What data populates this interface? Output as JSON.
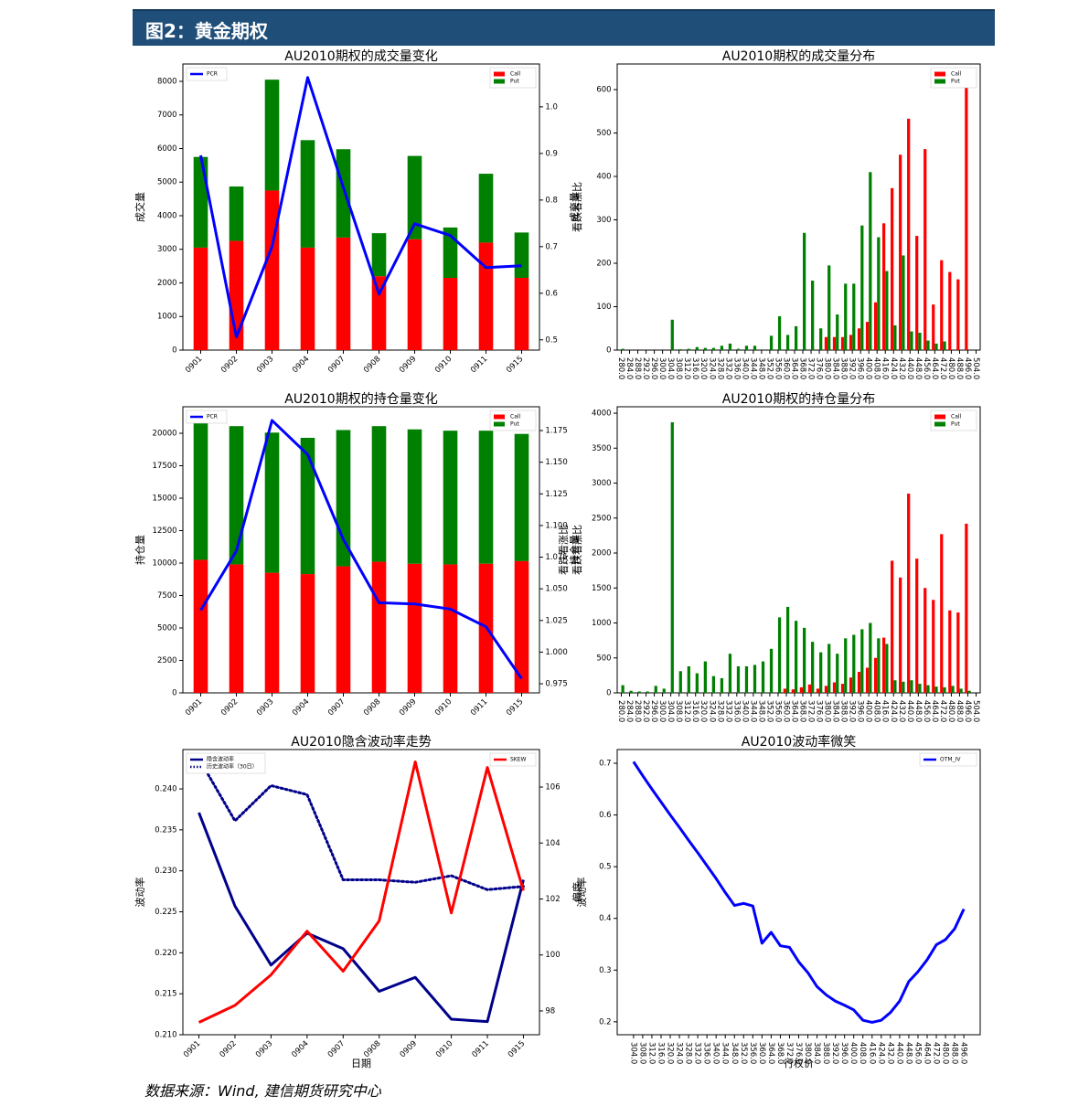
{
  "header": {
    "title": "图2：黄金期权"
  },
  "footer": {
    "text": "数据来源：Wind, 建信期货研究中心"
  },
  "chart_data": [
    {
      "type": "stacked_bar_line",
      "title": "AU2010期权的成交量变化",
      "ylabel": "成交量",
      "y2label": "看跌看涨比",
      "categories": [
        "0901",
        "0902",
        "0903",
        "0904",
        "0907",
        "0908",
        "0909",
        "0910",
        "0911",
        "0915"
      ],
      "xtick_rotation": 45,
      "series": [
        {
          "name": "Call",
          "color": "#ff0000",
          "values": [
            3050,
            3250,
            4750,
            3050,
            3350,
            2200,
            3300,
            2150,
            3200,
            2150
          ]
        },
        {
          "name": "Put",
          "color": "#008000",
          "values": [
            2700,
            1620,
            3300,
            3200,
            2630,
            1280,
            2480,
            1500,
            2050,
            1350
          ]
        },
        {
          "name": "PCR",
          "color": "#0000ff",
          "axis": "y2",
          "values": [
            0.896,
            0.506,
            0.7,
            1.063,
            0.827,
            0.598,
            0.749,
            0.724,
            0.655,
            0.659
          ]
        }
      ],
      "ylim": [
        0,
        8517
      ],
      "yticks": [
        0,
        1000,
        2000,
        3000,
        4000,
        5000,
        6000,
        7000,
        8000
      ],
      "y2lim": [
        0.478,
        1.092
      ],
      "y2ticks": [
        0.5,
        0.6,
        0.7,
        0.8,
        0.9,
        {
          "value": 1,
          "label": "1.0"
        }
      ],
      "legend": "upper right",
      "legend2": "upper left"
    },
    {
      "type": "grouped_bar",
      "title": "AU2010期权的成交量分布",
      "ylabel": "成交量",
      "categories": [
        "280.0",
        "284.0",
        "288.0",
        "292.0",
        "296.0",
        "300.0",
        "304.0",
        "308.0",
        "312.0",
        "316.0",
        "320.0",
        "324.0",
        "328.0",
        "332.0",
        "336.0",
        "340.0",
        "344.0",
        "348.0",
        "352.0",
        "356.0",
        "360.0",
        "364.0",
        "368.0",
        "372.0",
        "376.0",
        "380.0",
        "384.0",
        "388.0",
        "392.0",
        "396.0",
        "400.0",
        "408.0",
        "416.0",
        "424.0",
        "432.0",
        "440.0",
        "448.0",
        "456.0",
        "464.0",
        "472.0",
        "480.0",
        "488.0",
        "496.0",
        "504.0"
      ],
      "xtick_rotation": 90,
      "series": [
        {
          "name": "Call",
          "color": "#ff0000",
          "values": [
            0,
            0,
            0,
            0,
            0,
            0,
            0,
            0,
            0,
            0,
            0,
            0,
            0,
            0,
            0,
            0,
            0,
            0,
            0,
            0,
            0,
            0,
            0,
            0,
            0,
            30,
            30,
            30,
            35,
            50,
            65,
            110,
            292,
            373,
            450,
            533,
            263,
            463,
            105,
            207,
            180,
            163,
            615,
            0
          ]
        },
        {
          "name": "Put",
          "color": "#008000",
          "values": [
            3,
            0,
            0,
            0,
            0,
            0,
            70,
            2,
            3,
            7,
            5,
            5,
            10,
            15,
            3,
            10,
            10,
            0,
            33,
            78,
            35,
            55,
            270,
            160,
            50,
            195,
            82,
            153,
            153,
            287,
            410,
            260,
            182,
            57,
            218,
            43,
            40,
            22,
            15,
            20,
            0,
            0,
            0,
            0
          ]
        }
      ],
      "ylim": [
        0,
        659
      ],
      "yticks": [
        0,
        100,
        200,
        300,
        400,
        500,
        600
      ],
      "legend": "upper right"
    },
    {
      "type": "stacked_bar_line",
      "title": "AU2010期权的持仓量变化",
      "ylabel": "持仓量",
      "y2label": "看跌看涨比",
      "categories": [
        "0901",
        "0902",
        "0903",
        "0904",
        "0907",
        "0908",
        "0909",
        "0910",
        "0911",
        "0915"
      ],
      "xtick_rotation": 45,
      "series": [
        {
          "name": "Call",
          "color": "#ff0000",
          "values": [
            10250,
            9900,
            9250,
            9150,
            9750,
            10100,
            9950,
            9900,
            9950,
            10150
          ]
        },
        {
          "name": "Put",
          "color": "#008000",
          "values": [
            10600,
            10650,
            10800,
            10500,
            10500,
            10450,
            10350,
            10300,
            10250,
            9800
          ]
        },
        {
          "name": "PCR",
          "color": "#0000ff",
          "axis": "y2",
          "values": [
            1.033,
            1.08,
            1.183,
            1.156,
            1.089,
            1.039,
            1.038,
            1.034,
            1.02,
            0.979
          ]
        }
      ],
      "ylim": [
        0,
        22042
      ],
      "yticks": [
        0,
        2500,
        5000,
        7500,
        10000,
        12500,
        15000,
        17500,
        20000
      ],
      "y2lim": [
        0.9678,
        1.1938
      ],
      "y2ticks": [
        0.975,
        {
          "value": 1,
          "label": "1.000"
        },
        1.025,
        {
          "value": 1.05,
          "label": "1.050"
        },
        1.075,
        {
          "value": 1.1,
          "label": "1.100"
        },
        1.125,
        {
          "value": 1.15,
          "label": "1.150"
        },
        1.175
      ],
      "legend": "upper right",
      "legend2": "upper left"
    },
    {
      "type": "grouped_bar",
      "title": "AU2010期权的持仓量分布",
      "ylabel": "持仓量",
      "ylabel2": "看跌看涨比",
      "categories": [
        "280.0",
        "284.0",
        "288.0",
        "292.0",
        "296.0",
        "300.0",
        "304.0",
        "308.0",
        "312.0",
        "316.0",
        "320.0",
        "324.0",
        "328.0",
        "332.0",
        "336.0",
        "340.0",
        "344.0",
        "348.0",
        "352.0",
        "356.0",
        "360.0",
        "364.0",
        "368.0",
        "372.0",
        "376.0",
        "380.0",
        "384.0",
        "388.0",
        "392.0",
        "396.0",
        "400.0",
        "408.0",
        "416.0",
        "424.0",
        "432.0",
        "440.0",
        "448.0",
        "456.0",
        "464.0",
        "472.0",
        "480.0",
        "488.0",
        "496.0",
        "504.0"
      ],
      "xtick_rotation": 90,
      "series": [
        {
          "name": "Call",
          "color": "#ff0000",
          "values": [
            0,
            0,
            0,
            0,
            0,
            0,
            0,
            0,
            0,
            0,
            0,
            0,
            0,
            0,
            0,
            0,
            0,
            0,
            0,
            0,
            60,
            50,
            80,
            120,
            60,
            100,
            150,
            130,
            220,
            300,
            360,
            500,
            790,
            1890,
            1650,
            2850,
            1920,
            1500,
            1330,
            2270,
            1180,
            1150,
            2420,
            0
          ]
        },
        {
          "name": "Put",
          "color": "#008000",
          "values": [
            110,
            30,
            20,
            20,
            100,
            60,
            3870,
            310,
            380,
            280,
            450,
            240,
            210,
            560,
            380,
            380,
            400,
            450,
            630,
            1080,
            1230,
            1030,
            930,
            730,
            580,
            700,
            560,
            780,
            830,
            910,
            1000,
            780,
            700,
            180,
            160,
            180,
            130,
            110,
            90,
            80,
            100,
            60,
            30,
            0
          ]
        }
      ],
      "ylim": [
        0,
        4092
      ],
      "yticks": [
        0,
        500,
        1000,
        1500,
        2000,
        2500,
        3000,
        3500,
        4000
      ],
      "legend": "upper right"
    },
    {
      "type": "line",
      "title": "AU2010隐含波动率走势",
      "xlabel": "日期",
      "ylabel": "波动率",
      "y2label": "偏度",
      "categories": [
        "0901",
        "0902",
        "0903",
        "0904",
        "0907",
        "0908",
        "0909",
        "0910",
        "0911",
        "0915"
      ],
      "xtick_rotation": 45,
      "series": [
        {
          "name": "隐含波动率",
          "color": "#00008b",
          "style": "solid",
          "values": [
            0.2371,
            0.2257,
            0.2185,
            0.2224,
            0.2205,
            0.2153,
            0.217,
            0.2119,
            0.2116,
            0.2289
          ]
        },
        {
          "name": "历史波动率（30日）",
          "color": "#00008b",
          "style": "dotted",
          "values": [
            0.2437,
            0.2361,
            0.2404,
            0.2393,
            0.2289,
            0.2289,
            0.2286,
            0.2294,
            0.2277,
            0.2281
          ]
        },
        {
          "name": "SKEW",
          "color": "#ff0000",
          "style": "solid",
          "axis": "y2",
          "values": [
            97.59,
            98.2,
            99.29,
            100.85,
            99.42,
            101.22,
            106.9,
            101.5,
            106.7,
            102.3
          ]
        }
      ],
      "ylim": [
        0.21,
        0.2448
      ],
      "yticks": [
        {
          "value": 0.21,
          "label": "0.210"
        },
        0.215,
        {
          "value": 0.22,
          "label": "0.220"
        },
        0.225,
        {
          "value": 0.23,
          "label": "0.230"
        },
        0.235,
        {
          "value": 0.24,
          "label": "0.240"
        }
      ],
      "y2lim": [
        97.15,
        107.34
      ],
      "y2ticks": [
        98,
        100,
        102,
        104,
        106
      ],
      "legend": "upper left",
      "legend2": "upper right"
    },
    {
      "type": "line",
      "title": "AU2010波动率微笑",
      "xlabel": "行权价",
      "ylabel": "波动率",
      "categories": [
        "304.0",
        "308.0",
        "312.0",
        "316.0",
        "320.0",
        "324.0",
        "328.0",
        "332.0",
        "336.0",
        "340.0",
        "344.0",
        "348.0",
        "352.0",
        "356.0",
        "360.0",
        "364.0",
        "368.0",
        "372.0",
        "376.0",
        "380.0",
        "384.0",
        "388.0",
        "392.0",
        "396.0",
        "400.0",
        "408.0",
        "416.0",
        "424.0",
        "432.0",
        "440.0",
        "448.0",
        "456.0",
        "464.0",
        "472.0",
        "480.0",
        "488.0",
        "496.0"
      ],
      "xtick_rotation": 90,
      "series": [
        {
          "name": "OTM_IV",
          "color": "#0000ff",
          "style": "solid",
          "values": [
            0.703,
            0.676,
            0.65,
            0.625,
            0.6,
            0.576,
            0.551,
            0.527,
            0.502,
            0.477,
            0.45,
            0.425,
            0.429,
            0.424,
            0.352,
            0.373,
            0.347,
            0.344,
            0.316,
            0.295,
            0.268,
            0.252,
            0.24,
            0.232,
            0.223,
            0.203,
            0.199,
            0.203,
            0.218,
            0.24,
            0.278,
            0.297,
            0.32,
            0.349,
            0.359,
            0.38,
            0.418
          ]
        }
      ],
      "ylim": [
        0.175,
        0.7265
      ],
      "yticks": [
        0.2,
        0.3,
        0.4,
        0.5,
        0.6,
        0.7
      ],
      "legend": "upper right"
    }
  ]
}
